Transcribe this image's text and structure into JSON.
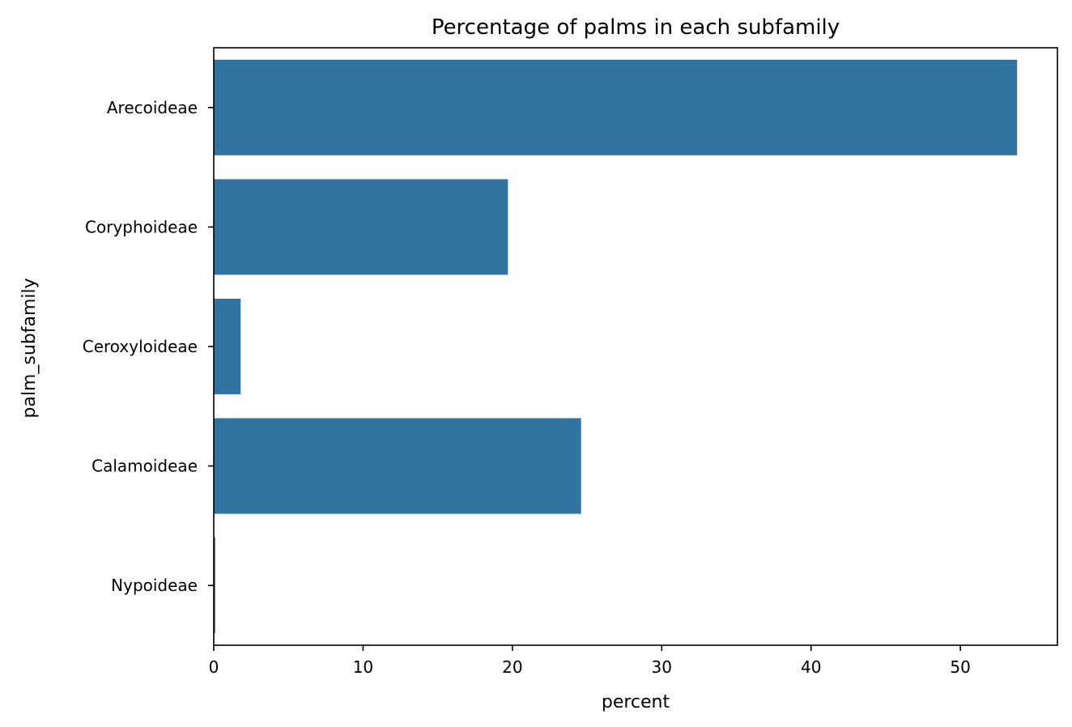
{
  "chart_data": {
    "type": "bar",
    "orientation": "horizontal",
    "title": "Percentage of palms in each subfamily",
    "xlabel": "percent",
    "ylabel": "palm_subfamily",
    "categories": [
      "Arecoideae",
      "Coryphoideae",
      "Ceroxyloideae",
      "Calamoideae",
      "Nypoideae"
    ],
    "values": [
      53.8,
      19.7,
      1.8,
      24.6,
      0.1
    ],
    "xlim": [
      0,
      56.5
    ],
    "xticks": [
      0,
      10,
      20,
      30,
      40,
      50
    ],
    "grid": false,
    "bar_color": "#3274a1"
  }
}
